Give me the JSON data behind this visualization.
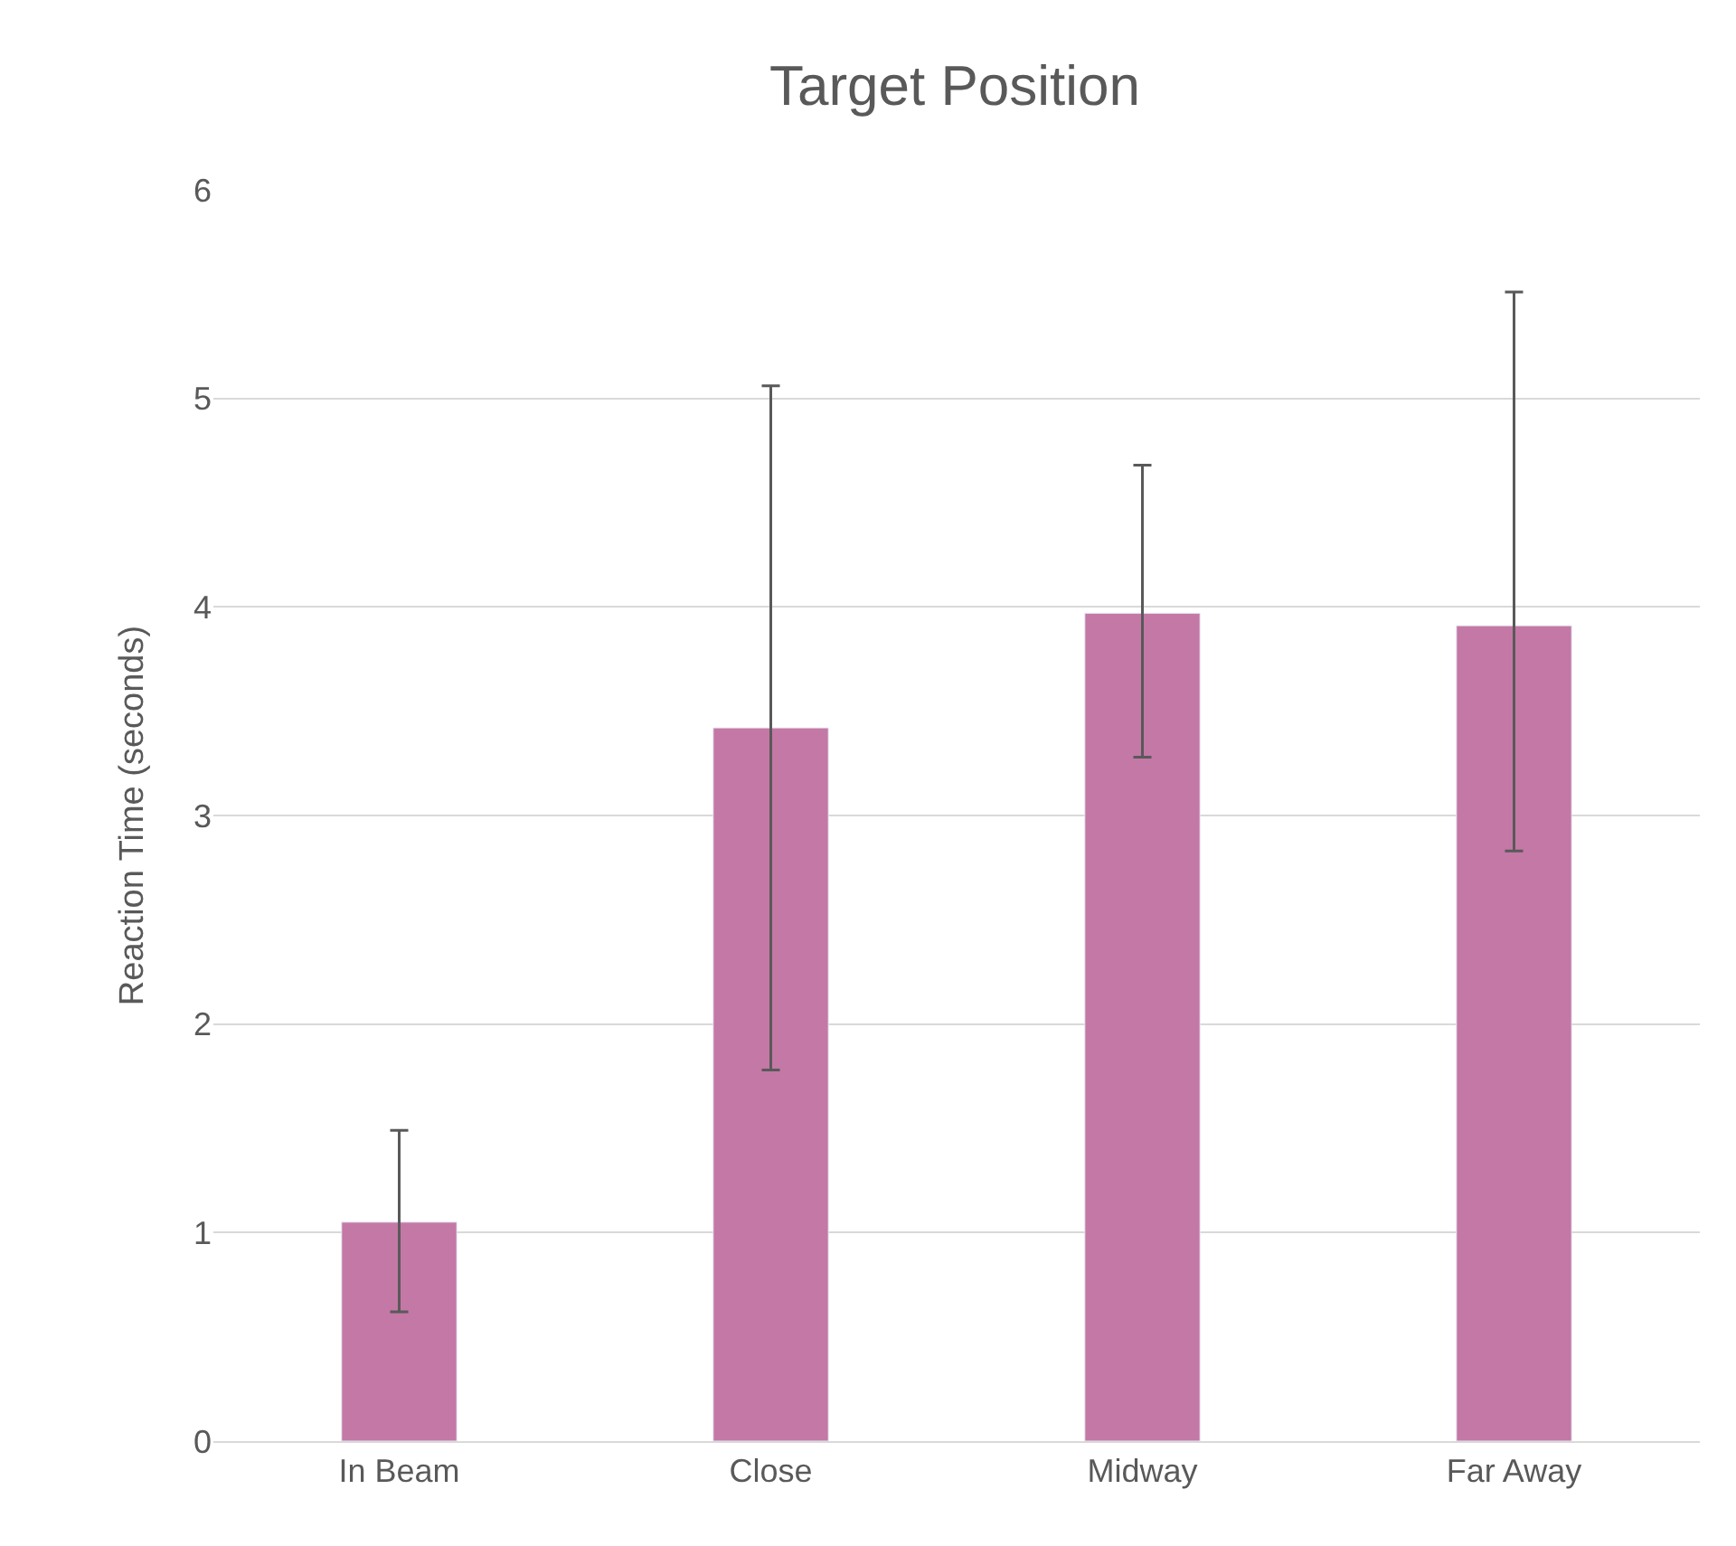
{
  "chart_data": {
    "type": "bar",
    "title": "Target Position",
    "ylabel": "Reaction Time (seconds)",
    "categories": [
      "In Beam",
      "Close",
      "Midway",
      "Far Away"
    ],
    "values": [
      1.05,
      3.42,
      3.97,
      3.91
    ],
    "errors": [
      [
        0.62,
        1.49
      ],
      [
        1.78,
        5.06
      ],
      [
        3.28,
        4.68
      ],
      [
        2.83,
        5.51
      ]
    ],
    "color": "#c478a6",
    "ylim": [
      0,
      6
    ],
    "yticks": [
      0,
      1,
      2,
      3,
      4,
      5,
      6
    ],
    "grid": "y"
  }
}
